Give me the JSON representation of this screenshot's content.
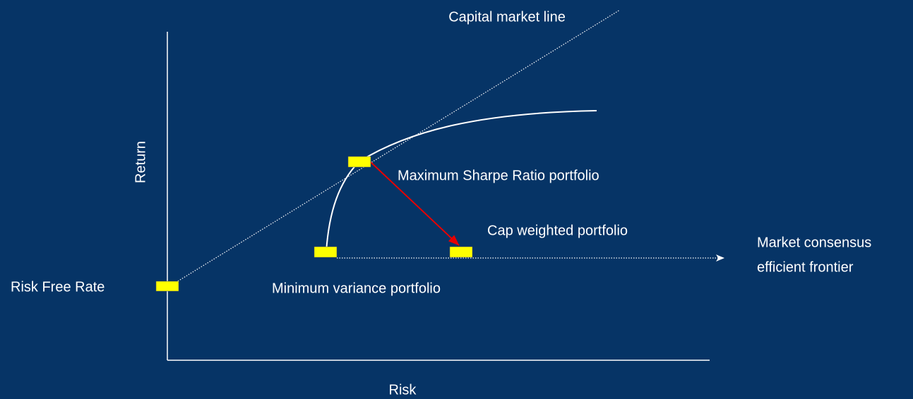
{
  "axes": {
    "y_label": "Return",
    "x_label": "Risk"
  },
  "lines": {
    "capital_market_line": "Capital market line",
    "market_consensus": [
      "Market consensus",
      "efficient frontier"
    ]
  },
  "points": {
    "risk_free_rate": "Risk Free Rate",
    "max_sharpe": "Maximum Sharpe Ratio portfolio",
    "cap_weighted": "Cap weighted portfolio",
    "min_variance": "Minimum variance portfolio"
  }
}
